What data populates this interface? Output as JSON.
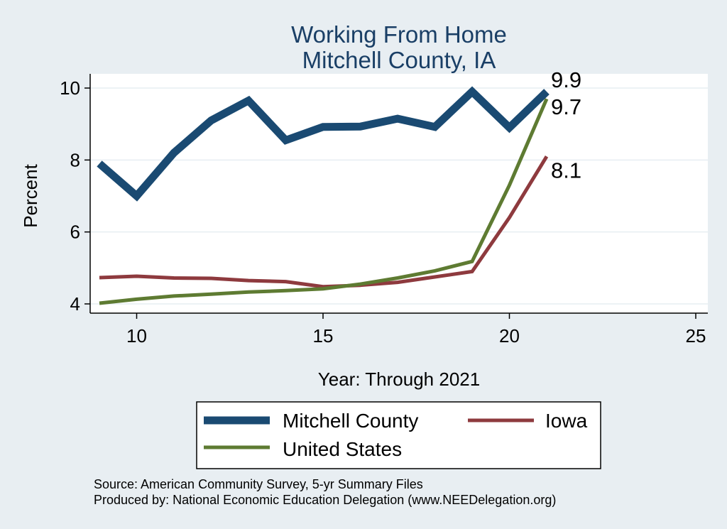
{
  "chart_data": {
    "type": "line",
    "title": [
      "Working From Home",
      "Mitchell County, IA"
    ],
    "xlabel": "Year: Through 2021",
    "ylabel": "Percent",
    "xlim": [
      9,
      25
    ],
    "ylim": [
      4,
      10
    ],
    "xticks": [
      10,
      15,
      20,
      25
    ],
    "yticks": [
      4,
      6,
      8,
      10
    ],
    "grid": true,
    "legend_position": "bottom",
    "x": [
      9,
      10,
      11,
      12,
      13,
      14,
      15,
      16,
      17,
      18,
      19,
      20,
      21
    ],
    "series": [
      {
        "name": "Mitchell County",
        "color": "#1a4a72",
        "values": [
          7.9,
          7.0,
          8.2,
          9.1,
          9.65,
          8.55,
          8.92,
          8.93,
          9.15,
          8.92,
          9.9,
          8.9,
          9.9
        ],
        "end_label": "9.9"
      },
      {
        "name": "Iowa",
        "color": "#8e3a3e",
        "values": [
          4.73,
          4.77,
          4.72,
          4.71,
          4.65,
          4.62,
          4.48,
          4.52,
          4.6,
          4.75,
          4.9,
          6.4,
          8.1
        ],
        "end_label": "8.1"
      },
      {
        "name": "United States",
        "color": "#5e7b32",
        "values": [
          4.02,
          4.13,
          4.22,
          4.27,
          4.33,
          4.37,
          4.42,
          4.55,
          4.72,
          4.92,
          5.18,
          7.3,
          9.7
        ],
        "end_label": "9.7"
      }
    ]
  },
  "notes": {
    "source": "Source: American Community Survey, 5-yr Summary Files",
    "produced": "Produced by: National Economic Education Delegation (www.NEEDelegation.org)"
  }
}
